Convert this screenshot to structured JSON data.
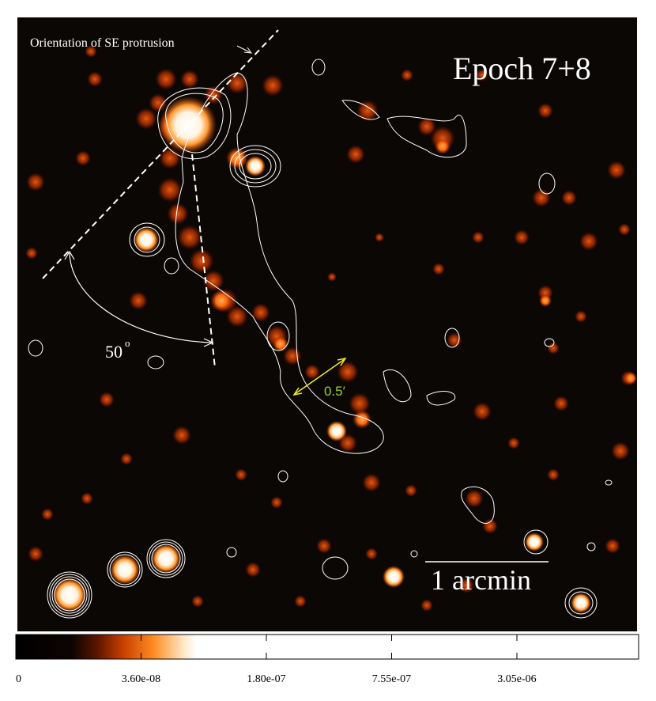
{
  "image": {
    "annotations": {
      "protrusion": "Orientation of SE protrusion",
      "epoch": "Epoch 7+8",
      "angle": "50",
      "angle_unit": "o",
      "scale_arrow": "0.5′",
      "scale_bar": "1 arcmin"
    }
  },
  "colorbar": {
    "tick_labels": [
      "0",
      "3.60e-08",
      "1.80e-07",
      "7.55e-07",
      "3.05e-06"
    ]
  }
}
